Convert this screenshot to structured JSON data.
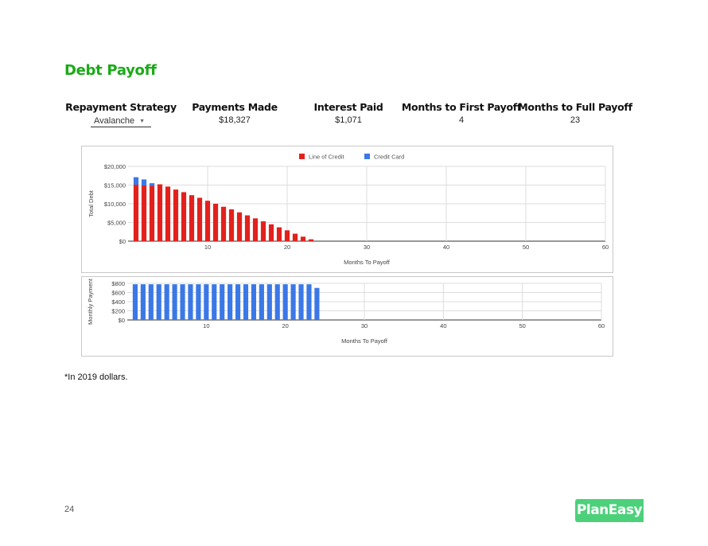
{
  "page": {
    "title": "Debt Payoff",
    "footnote": "*In 2019 dollars.",
    "page_number": "24",
    "logo_text": "PlanEasy"
  },
  "stats": {
    "strategy_label": "Repayment Strategy",
    "strategy_value": "Avalanche",
    "payments_label": "Payments Made",
    "payments_value": "$18,327",
    "interest_label": "Interest Paid",
    "interest_value": "$1,071",
    "first_label": "Months to First Payoff",
    "first_value": "4",
    "full_label": "Months to Full Payoff",
    "full_value": "23"
  },
  "chart_data": [
    {
      "type": "bar",
      "stacked": true,
      "xlabel": "Months To Payoff",
      "ylabel": "Total Debt",
      "xlim": [
        0,
        60
      ],
      "ylim": [
        0,
        20000
      ],
      "xticks": [
        "10",
        "20",
        "30",
        "40",
        "50",
        "60"
      ],
      "yticks": [
        "$0",
        "$5,000",
        "$10,000",
        "$15,000",
        "$20,000"
      ],
      "legend": "top",
      "grid": true,
      "x": [
        1,
        2,
        3,
        4,
        5,
        6,
        7,
        8,
        9,
        10,
        11,
        12,
        13,
        14,
        15,
        16,
        17,
        18,
        19,
        20,
        21,
        22,
        23
      ],
      "series": [
        {
          "name": "Line of Credit",
          "color": "#e3211c",
          "values": [
            15100,
            14900,
            14800,
            15200,
            14600,
            13800,
            13100,
            12300,
            11600,
            10800,
            10000,
            9200,
            8500,
            7700,
            6900,
            6100,
            5300,
            4500,
            3700,
            2900,
            2000,
            1200,
            500
          ]
        },
        {
          "name": "Credit Card",
          "color": "#3b78e7",
          "values": [
            2000,
            1600,
            700,
            0,
            0,
            0,
            0,
            0,
            0,
            0,
            0,
            0,
            0,
            0,
            0,
            0,
            0,
            0,
            0,
            0,
            0,
            0,
            0
          ]
        }
      ]
    },
    {
      "type": "bar",
      "xlabel": "Months To Payoff",
      "ylabel": "Monthly Payment",
      "xlim": [
        0,
        60
      ],
      "ylim": [
        0,
        800
      ],
      "xticks": [
        "10",
        "20",
        "30",
        "40",
        "50",
        "60"
      ],
      "yticks": [
        "$0",
        "$200",
        "$400",
        "$600",
        "$800"
      ],
      "grid": true,
      "x": [
        1,
        2,
        3,
        4,
        5,
        6,
        7,
        8,
        9,
        10,
        11,
        12,
        13,
        14,
        15,
        16,
        17,
        18,
        19,
        20,
        21,
        22,
        23,
        24
      ],
      "series": [
        {
          "color": "#3b78e7",
          "values": [
            780,
            780,
            780,
            780,
            780,
            780,
            780,
            780,
            780,
            780,
            780,
            780,
            780,
            780,
            780,
            780,
            780,
            780,
            780,
            780,
            780,
            780,
            780,
            700
          ]
        }
      ]
    }
  ]
}
